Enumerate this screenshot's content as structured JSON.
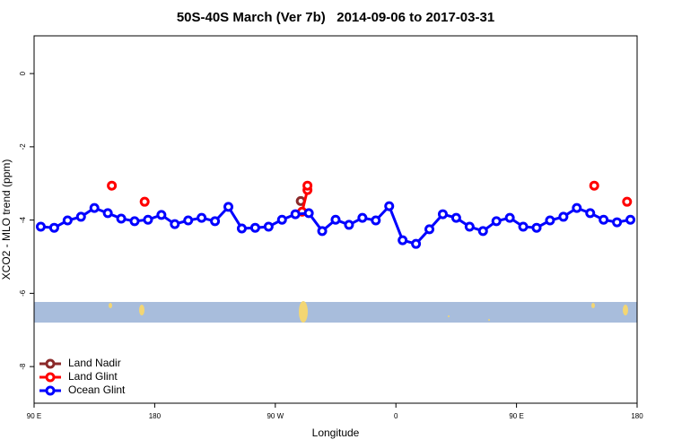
{
  "chart_data": {
    "type": "line",
    "title": "50S-40S March (Ver 7b)   2014-09-06 to 2017-03-31",
    "xlabel": "Longitude",
    "ylabel": "XCO2 - MLO trend (ppm)",
    "xlim": [
      90,
      540
    ],
    "ylim": [
      -9,
      1.03
    ],
    "xticks": [
      {
        "value": 90,
        "label": "90 E"
      },
      {
        "value": 180,
        "label": "180"
      },
      {
        "value": 270,
        "label": "90 W"
      },
      {
        "value": 360,
        "label": "0"
      },
      {
        "value": 450,
        "label": "90 E"
      },
      {
        "value": 540,
        "label": "180"
      }
    ],
    "yticks": [
      0,
      -2,
      -4,
      -6,
      -8
    ],
    "legend": "bottomleft",
    "series": [
      {
        "name": "Land Nadir",
        "color": "#8b2a2a",
        "x": [
          289
        ],
        "values": [
          -3.48
        ]
      },
      {
        "name": "Land Glint",
        "color": "#ff0000",
        "x": [
          148,
          null,
          172.5,
          null,
          290,
          294,
          294,
          null,
          508,
          null,
          532.5
        ],
        "values": [
          -3.06,
          null,
          -3.5,
          null,
          -3.77,
          -3.18,
          -3.06,
          null,
          -3.06,
          null,
          -3.5
        ]
      },
      {
        "name": "Ocean Glint",
        "color": "#0000ff",
        "x": [
          95,
          105,
          115,
          125,
          135,
          145,
          155,
          165,
          175,
          185,
          195,
          205,
          215,
          225,
          235,
          245,
          255,
          265,
          275,
          285,
          295,
          305,
          315,
          325,
          335,
          345,
          355,
          365,
          375,
          385,
          395,
          405,
          415,
          425,
          435,
          445,
          455,
          465,
          475,
          485,
          495,
          505,
          515,
          525,
          535
        ],
        "values": [
          -4.18,
          -4.21,
          -4.01,
          -3.91,
          -3.67,
          -3.81,
          -3.96,
          -4.03,
          -3.99,
          -3.86,
          -4.11,
          -4.01,
          -3.94,
          -4.03,
          -3.64,
          -4.23,
          -4.21,
          -4.18,
          -3.99,
          -3.84,
          -3.81,
          -4.3,
          -3.99,
          -4.13,
          -3.94,
          -4.01,
          -3.62,
          -4.55,
          -4.65,
          -4.25,
          -3.84,
          -3.94,
          -4.18,
          -4.3,
          -4.03,
          -3.94,
          -4.18,
          -4.21,
          -4.01,
          -3.91,
          -3.67,
          -3.81,
          -3.99,
          -4.06,
          -3.99
        ]
      }
    ]
  }
}
